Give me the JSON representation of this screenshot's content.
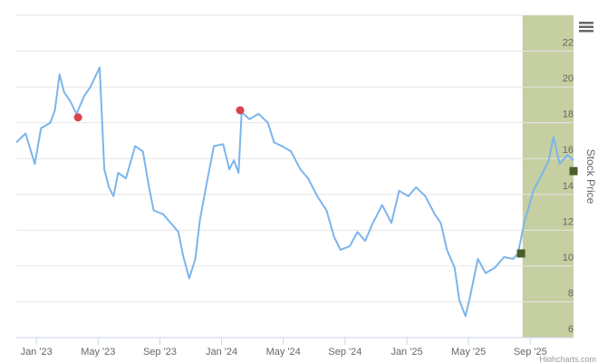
{
  "chart_data": {
    "type": "line",
    "y_axis_label": "Stock Price",
    "credits": "Highcharts.com",
    "xlim": [
      -1.3,
      34.8
    ],
    "xticks": [
      {
        "value": 0,
        "label": "Jan '23"
      },
      {
        "value": 4,
        "label": "May '23"
      },
      {
        "value": 8,
        "label": "Sep '23"
      },
      {
        "value": 12,
        "label": "Jan '24"
      },
      {
        "value": 16,
        "label": "May '24"
      },
      {
        "value": 20,
        "label": "Sep '24"
      },
      {
        "value": 24,
        "label": "Jan '25"
      },
      {
        "value": 28,
        "label": "May '25"
      },
      {
        "value": 32,
        "label": "Sep '25"
      }
    ],
    "ylim": [
      6,
      24
    ],
    "yticks": [
      6,
      8,
      10,
      12,
      14,
      16,
      18,
      20,
      22
    ],
    "grid": true,
    "band": {
      "from": 31.5,
      "to": 34.8,
      "color": "#c5cfa1"
    },
    "x": [
      -1.3,
      -0.7,
      -0.1,
      0.3,
      0.9,
      1.2,
      1.5,
      1.8,
      2.2,
      2.6,
      3.1,
      3.5,
      4.1,
      4.4,
      4.7,
      5.0,
      5.3,
      5.8,
      6.4,
      6.9,
      7.3,
      7.6,
      8.2,
      8.7,
      9.2,
      9.5,
      9.9,
      10.3,
      10.6,
      11.1,
      11.5,
      12.1,
      12.5,
      12.8,
      13.1,
      13.3,
      13.8,
      14.4,
      15.0,
      15.4,
      15.9,
      16.5,
      17.1,
      17.6,
      18.2,
      18.8,
      19.3,
      19.7,
      20.3,
      20.8,
      21.3,
      21.8,
      22.4,
      23.0,
      23.5,
      24.1,
      24.6,
      25.2,
      25.8,
      26.2,
      26.6,
      27.1,
      27.4,
      27.8,
      28.1,
      28.6,
      29.1,
      29.7,
      30.3,
      30.9,
      31.2,
      31.6,
      32.2,
      32.8,
      33.2,
      33.5,
      33.9,
      34.4,
      34.8
    ],
    "series": [
      {
        "color": "#7cb5ec",
        "values": [
          16.9,
          17.4,
          15.7,
          17.7,
          18.0,
          18.7,
          20.7,
          19.7,
          19.2,
          18.5,
          19.5,
          20.0,
          21.1,
          15.4,
          14.4,
          13.9,
          15.2,
          14.9,
          16.7,
          16.4,
          14.4,
          13.1,
          12.9,
          12.4,
          11.9,
          10.6,
          9.3,
          10.4,
          12.6,
          14.9,
          16.7,
          16.8,
          15.4,
          15.9,
          15.2,
          18.6,
          18.2,
          18.5,
          18.0,
          16.9,
          16.7,
          16.4,
          15.4,
          14.9,
          13.9,
          13.1,
          11.6,
          10.9,
          11.1,
          11.9,
          11.4,
          12.4,
          13.4,
          12.4,
          14.2,
          13.9,
          14.4,
          13.9,
          12.9,
          12.4,
          10.9,
          9.9,
          8.1,
          7.2,
          8.3,
          10.4,
          9.6,
          9.9,
          10.5,
          10.4,
          10.7,
          12.4,
          14.2,
          15.2,
          15.9,
          17.2,
          15.7,
          16.2,
          15.9
        ]
      }
    ],
    "markers": [
      {
        "x": 2.7,
        "y": 18.3,
        "shape": "circle",
        "color": "#d9434b"
      },
      {
        "x": 13.2,
        "y": 18.7,
        "shape": "circle",
        "color": "#d9434b"
      },
      {
        "x": 31.4,
        "y": 10.7,
        "shape": "square",
        "color": "#4a5e2a"
      },
      {
        "x": 34.8,
        "y": 15.3,
        "shape": "square",
        "color": "#4a5e2a"
      }
    ]
  }
}
